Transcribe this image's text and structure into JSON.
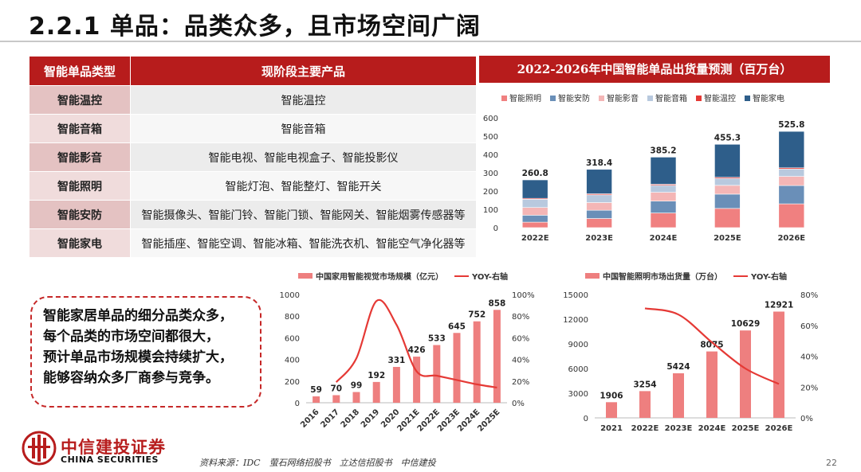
{
  "title": "2.2.1 单品：品类众多，且市场空间广阔",
  "table": {
    "headers": [
      "智能单品类型",
      "现阶段主要产品"
    ],
    "rows": [
      [
        "智能温控",
        "智能温控"
      ],
      [
        "智能音箱",
        "智能音箱"
      ],
      [
        "智能影音",
        "智能电视、智能电视盒子、智能投影仪"
      ],
      [
        "智能照明",
        "智能灯泡、智能整灯、智能开关"
      ],
      [
        "智能安防",
        "智能摄像头、智能门铃、智能门锁、智能网关、智能烟雾传感器等"
      ],
      [
        "智能家电",
        "智能插座、智能空调、智能冰箱、智能洗衣机、智能空气净化器等"
      ]
    ]
  },
  "chart1_header": "2022-2026年中国智能单品出货量预测（百万台）",
  "callout": [
    "智能家居单品的细分品类众多，",
    "每个品类的市场空间都很大，",
    "预计单品市场规模会持续扩大，",
    "能够容纳众多厂商参与竞争。"
  ],
  "source": "资料来源：IDC　萤石网络招股书　立达信招股书　中信建投",
  "page_number": "22",
  "logo": {
    "cn": "中信建投证券",
    "en": "CHINA SECURITIES"
  },
  "colors": {
    "red": "#b71c1c",
    "bar_pink": "#ee7f7f",
    "line_red": "#e53935"
  },
  "chart_data": [
    {
      "type": "bar",
      "stacked": true,
      "categories": [
        "2022E",
        "2023E",
        "2024E",
        "2025E",
        "2026E"
      ],
      "series": [
        {
          "name": "智能照明",
          "color": "#f08080",
          "values": [
            30,
            50,
            80,
            105,
            130
          ]
        },
        {
          "name": "智能安防",
          "color": "#6a8fb8",
          "values": [
            38,
            45,
            65,
            78,
            100
          ]
        },
        {
          "name": "智能影音",
          "color": "#f4b6b6",
          "values": [
            42,
            42,
            48,
            48,
            50
          ]
        },
        {
          "name": "智能音箱",
          "color": "#b8c9de",
          "values": [
            45,
            42,
            38,
            38,
            40
          ]
        },
        {
          "name": "智能温控",
          "color": "#e53935",
          "values": [
            5,
            6,
            6,
            6,
            7
          ]
        },
        {
          "name": "智能家电",
          "color": "#2e5e8a",
          "values": [
            100.8,
            133.4,
            148.2,
            180.3,
            198.8
          ]
        }
      ],
      "totals": [
        "260.8",
        "318.4",
        "385.2",
        "455.3",
        "525.8"
      ],
      "ylim": [
        0,
        600
      ],
      "yticks": [
        "0",
        "100",
        "200",
        "300",
        "400",
        "500",
        "600"
      ]
    },
    {
      "type": "bar+line",
      "categories": [
        "2016",
        "2017",
        "2018",
        "2019",
        "2020",
        "2021E",
        "2022E",
        "2023E",
        "2024E",
        "2025E"
      ],
      "bar_series": {
        "name": "中国家用智能视觉市场规模（亿元）",
        "values": [
          59,
          70,
          99,
          192,
          331,
          426,
          533,
          645,
          752,
          858
        ]
      },
      "line_series": {
        "name": "YOY-右轴",
        "values": [
          null,
          0.19,
          0.41,
          0.94,
          0.72,
          0.29,
          0.25,
          0.21,
          0.17,
          0.14
        ]
      },
      "ylim": [
        0,
        1000
      ],
      "yticks": [
        "0",
        "200",
        "400",
        "600",
        "800",
        "1000"
      ],
      "y2lim": [
        0,
        1.0
      ],
      "y2ticks": [
        "0%",
        "20%",
        "40%",
        "60%",
        "80%",
        "100%"
      ]
    },
    {
      "type": "bar+line",
      "categories": [
        "2021",
        "2022E",
        "2023E",
        "2024E",
        "2025E",
        "2026E"
      ],
      "bar_series": {
        "name": "中国智能照明市场出货量（万台）",
        "values": [
          1906,
          3254,
          5424,
          8075,
          10629,
          12921
        ]
      },
      "line_series": {
        "name": "YOY-右轴",
        "values": [
          null,
          0.71,
          0.67,
          0.49,
          0.32,
          0.22
        ]
      },
      "ylim": [
        0,
        15000
      ],
      "yticks": [
        "0",
        "3000",
        "6000",
        "9000",
        "12000",
        "15000"
      ],
      "y2lim": [
        0,
        0.8
      ],
      "y2ticks": [
        "0%",
        "20%",
        "40%",
        "60%",
        "80%"
      ]
    }
  ]
}
